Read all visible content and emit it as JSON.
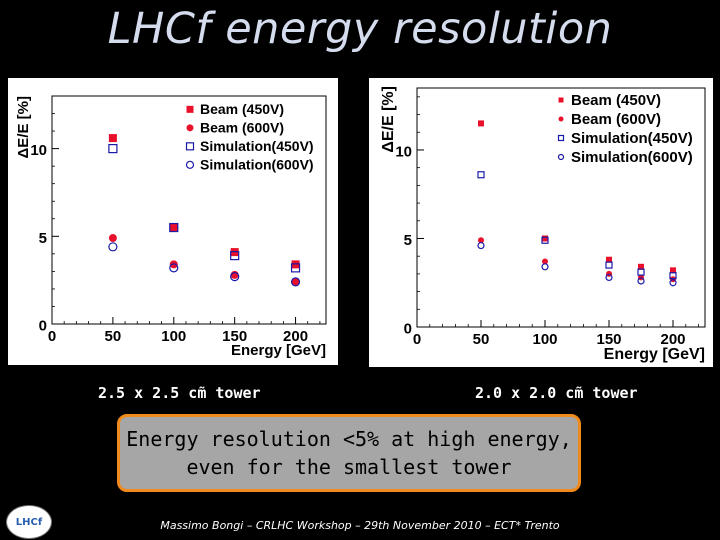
{
  "slide": {
    "title": "LHCf energy resolution",
    "caption_left": "2.5 x 2.5 cm̃ tower",
    "caption_right": "2.0 x 2.0 cm̃ tower",
    "conclusion_line1": "Energy resolution <5% at high energy,",
    "conclusion_line2": "even for the smallest tower",
    "footer": "Massimo Bongi – CRLHC Workshop – 29th November 2010 – ECT* Trento",
    "logo_text": "LHCf"
  },
  "colors": {
    "beam": "#e8102a",
    "simulation": "#1a1aa8",
    "conclusion_border": "#f08a1c",
    "conclusion_fill": "#a6a6a6"
  },
  "chart_data": [
    {
      "type": "scatter",
      "title": "",
      "xlabel": "Energy [GeV]",
      "ylabel": "ΔE/E [%]",
      "xlim": [
        0,
        225
      ],
      "ylim": [
        0,
        13
      ],
      "xticks": [
        "0",
        "50",
        "100",
        "150",
        "200"
      ],
      "yticks": [
        "0",
        "5",
        "10"
      ],
      "legend": {
        "placement": "top-right",
        "entries": [
          "Beam (450V)",
          "Beam (600V)",
          "Simulation(450V)",
          "Simulation(600V)"
        ]
      },
      "series": [
        {
          "name": "Beam (450V)",
          "marker": "filled-square",
          "x": [
            50,
            100,
            150,
            200
          ],
          "y": [
            10.6,
            5.5,
            4.1,
            3.4
          ]
        },
        {
          "name": "Beam (600V)",
          "marker": "filled-circle",
          "x": [
            50,
            100,
            150,
            200
          ],
          "y": [
            4.9,
            3.4,
            2.8,
            2.4
          ]
        },
        {
          "name": "Simulation(450V)",
          "marker": "open-square",
          "x": [
            50,
            100,
            150,
            200
          ],
          "y": [
            10.0,
            5.5,
            3.9,
            3.2
          ]
        },
        {
          "name": "Simulation(600V)",
          "marker": "open-circle",
          "x": [
            50,
            100,
            150,
            200
          ],
          "y": [
            4.4,
            3.2,
            2.7,
            2.4
          ]
        }
      ]
    },
    {
      "type": "scatter",
      "title": "",
      "xlabel": "Energy [GeV]",
      "ylabel": "ΔE/E [%]",
      "xlim": [
        0,
        225
      ],
      "ylim": [
        0,
        13.5
      ],
      "xticks": [
        "0",
        "50",
        "100",
        "150",
        "200"
      ],
      "yticks": [
        "0",
        "5",
        "10"
      ],
      "legend": {
        "placement": "top-right",
        "entries": [
          "Beam (450V)",
          "Beam (600V)",
          "Simulation(450V)",
          "Simulation(600V)"
        ]
      },
      "series": [
        {
          "name": "Beam (450V)",
          "marker": "filled-square",
          "x": [
            50,
            100,
            150,
            175,
            200
          ],
          "y": [
            11.5,
            5.0,
            3.8,
            3.4,
            3.2
          ]
        },
        {
          "name": "Beam (600V)",
          "marker": "filled-circle",
          "x": [
            50,
            100,
            150,
            175,
            200
          ],
          "y": [
            4.9,
            3.7,
            3.0,
            2.8,
            2.7
          ]
        },
        {
          "name": "Simulation(450V)",
          "marker": "open-square",
          "x": [
            50,
            100,
            150,
            175,
            200
          ],
          "y": [
            8.6,
            4.9,
            3.5,
            3.1,
            2.9
          ]
        },
        {
          "name": "Simulation(600V)",
          "marker": "open-circle",
          "x": [
            50,
            100,
            150,
            175,
            200
          ],
          "y": [
            4.6,
            3.4,
            2.8,
            2.6,
            2.5
          ]
        }
      ]
    }
  ]
}
